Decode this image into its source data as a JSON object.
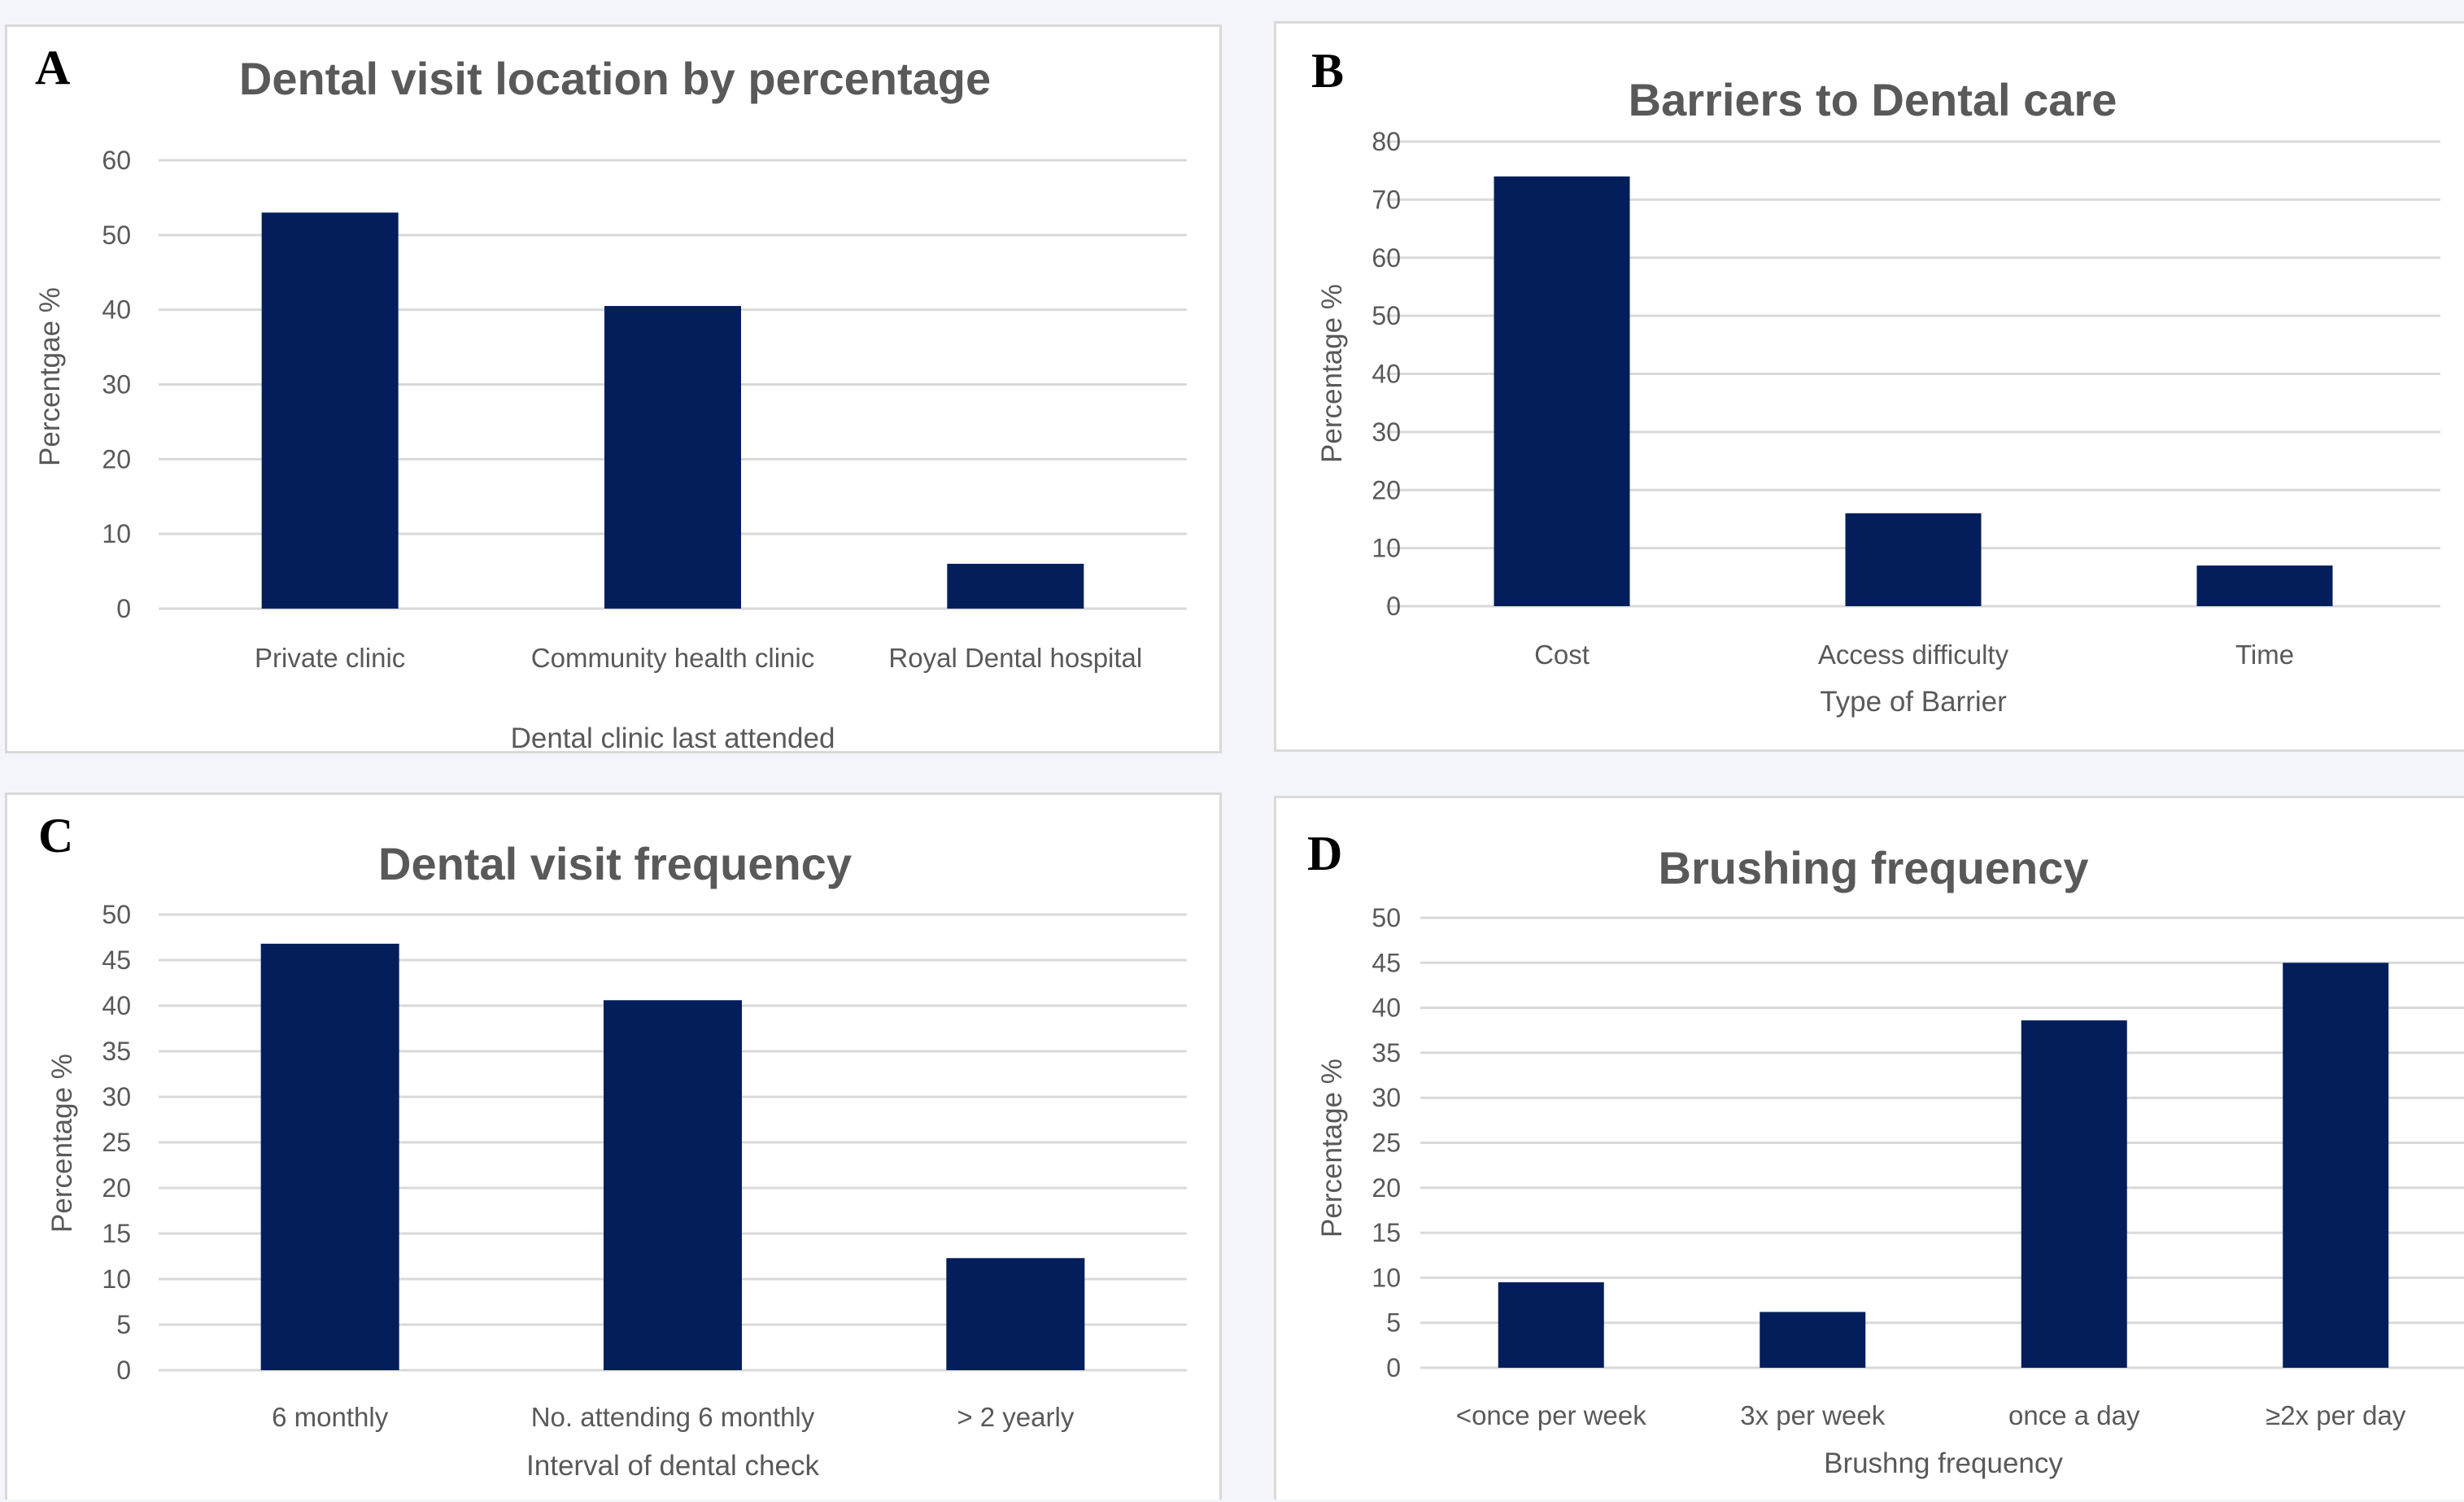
{
  "figure": {
    "background": "#f4f5fb",
    "bar_color": "#041e5c",
    "grid_color": "#d9d9d9",
    "text_color": "#595959"
  },
  "panels": [
    {
      "letter": "A"
    },
    {
      "letter": "B"
    },
    {
      "letter": "C"
    },
    {
      "letter": "D"
    }
  ],
  "chart_data": [
    {
      "type": "bar",
      "title": "Dental visit location by percentage",
      "xlabel": "Dental clinic last attended",
      "ylabel": "Percentgae %",
      "categories": [
        "Private clinic",
        "Community health clinic",
        "Royal Dental hospital"
      ],
      "values": [
        53,
        40.5,
        6
      ],
      "ylim": [
        0,
        60
      ],
      "yticks": [
        0,
        10,
        20,
        30,
        40,
        50,
        60
      ],
      "grid": true,
      "legend": "none"
    },
    {
      "type": "bar",
      "title": "Barriers  to Dental care",
      "xlabel": "Type of Barrier",
      "ylabel": "Percentage %",
      "categories": [
        "Cost",
        "Access difficulty",
        "Time"
      ],
      "values": [
        74,
        16,
        7
      ],
      "ylim": [
        0,
        80
      ],
      "yticks": [
        0,
        10,
        20,
        30,
        40,
        50,
        60,
        70,
        80
      ],
      "grid": true,
      "legend": "none"
    },
    {
      "type": "bar",
      "title": "Dental visit frequency",
      "xlabel": "Interval of dental check",
      "ylabel": "Percentage %",
      "categories": [
        "6 monthly",
        "No. attending 6 monthly",
        "> 2 yearly"
      ],
      "values": [
        46.8,
        40.6,
        12.3
      ],
      "ylim": [
        0,
        50
      ],
      "yticks": [
        0,
        5,
        10,
        15,
        20,
        25,
        30,
        35,
        40,
        45,
        50
      ],
      "grid": true,
      "legend": "none"
    },
    {
      "type": "bar",
      "title": "Brushing frequency",
      "xlabel": "Brushng frequency",
      "ylabel": "Percentage %",
      "categories": [
        "<once per week",
        "3x per week",
        "once a day",
        "≥2x per day"
      ],
      "values": [
        9.5,
        6.2,
        38.6,
        45
      ],
      "ylim": [
        0,
        50
      ],
      "yticks": [
        0,
        5,
        10,
        15,
        20,
        25,
        30,
        35,
        40,
        45,
        50
      ],
      "grid": true,
      "legend": "none"
    }
  ]
}
